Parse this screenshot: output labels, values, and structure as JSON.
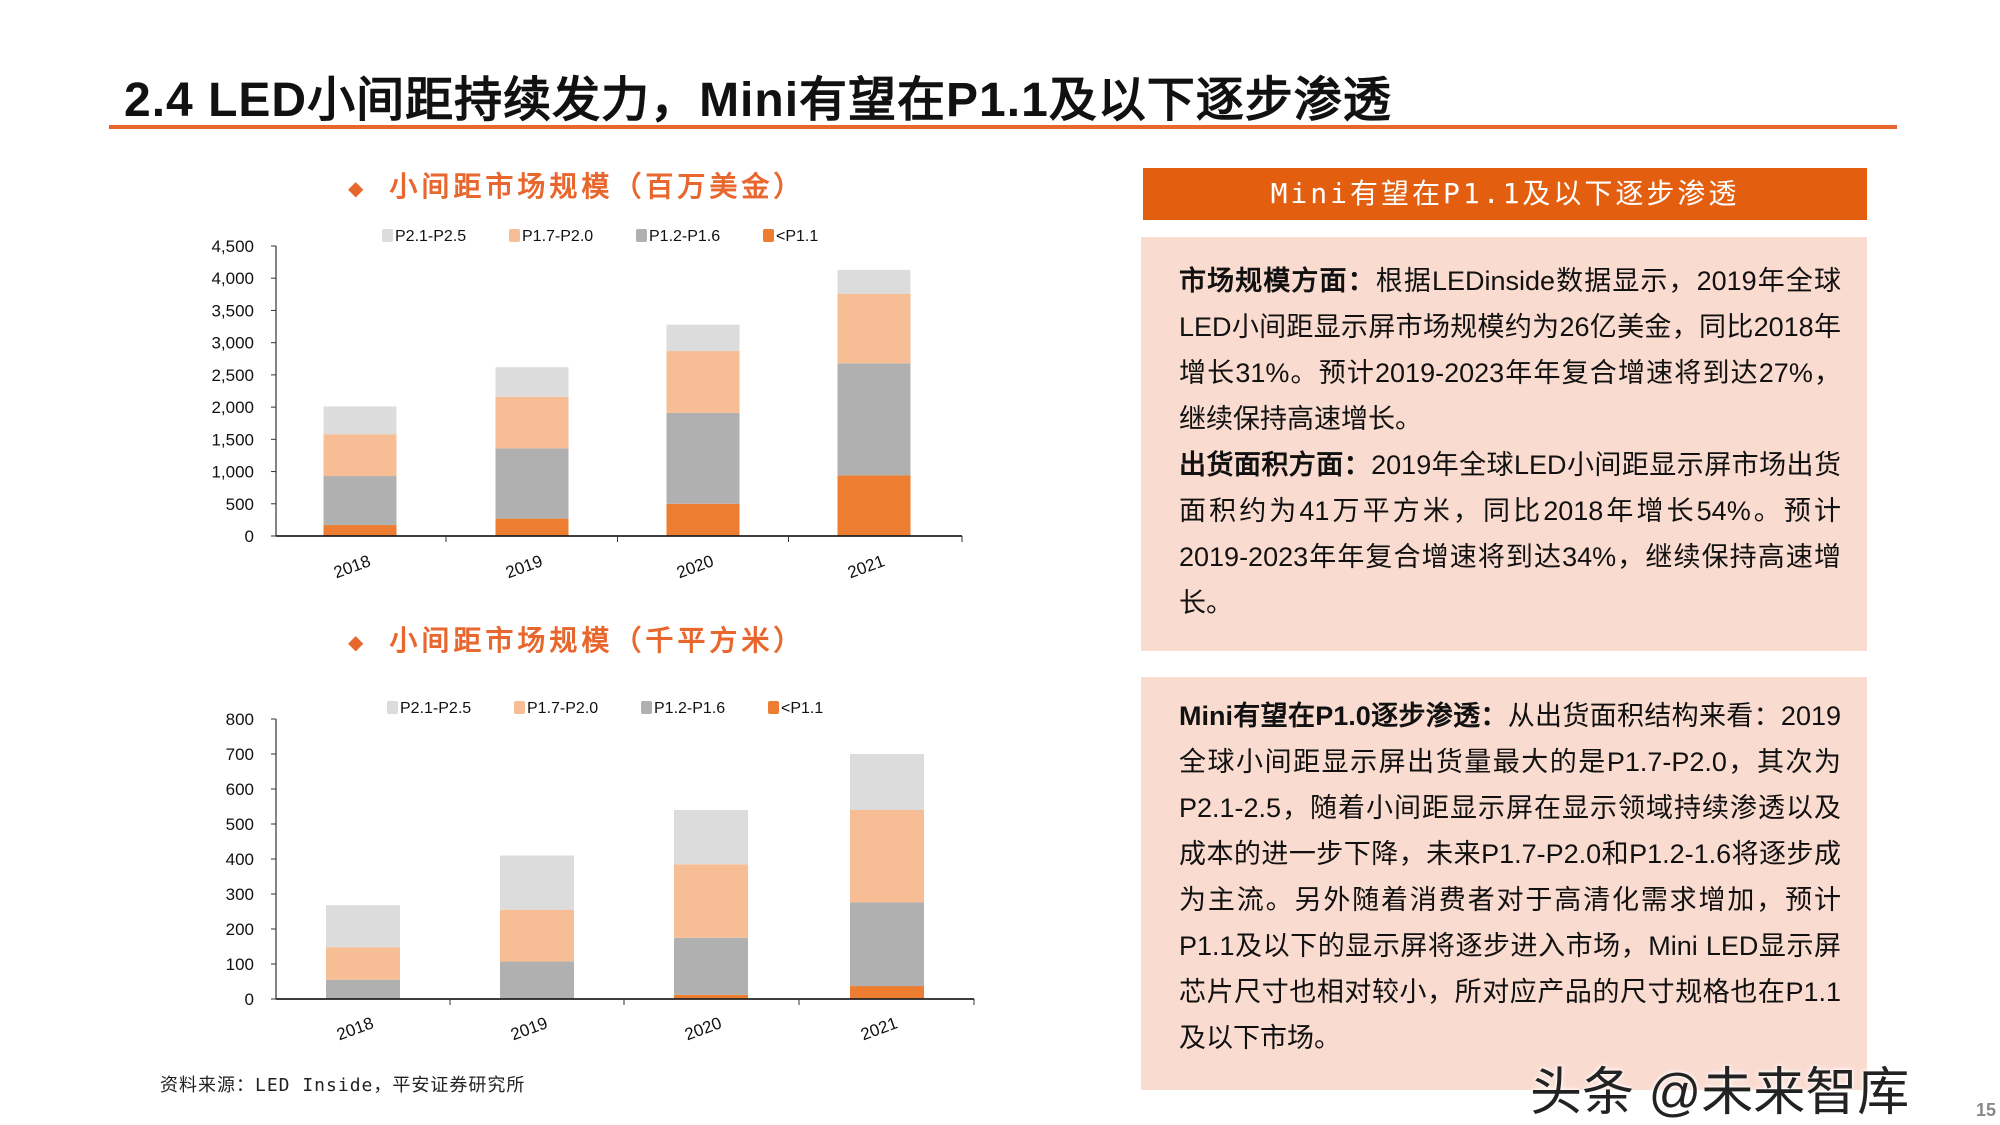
{
  "title": "2.4 LED小间距持续发力，Mini有望在P1.1及以下逐步渗透",
  "colors": {
    "accent": "#E8672E",
    "header_bg": "#E35F0F",
    "panel_bg": "#FADBD0"
  },
  "chart_data": [
    {
      "type": "bar",
      "stacked": true,
      "title": "小间距市场规模（百万美金）",
      "title_marker": "◆",
      "categories": [
        "2018",
        "2019",
        "2020",
        "2021"
      ],
      "series": [
        {
          "name": "<P1.1",
          "color": "#ED7D31",
          "values": [
            170,
            270,
            500,
            940
          ]
        },
        {
          "name": "P1.2-P1.6",
          "color": "#B0B0B0",
          "values": [
            760,
            1090,
            1410,
            1740
          ]
        },
        {
          "name": "P1.7-P2.0",
          "color": "#F7BE96",
          "values": [
            650,
            800,
            960,
            1080
          ]
        },
        {
          "name": "P2.1-P2.5",
          "color": "#DCDCDC",
          "values": [
            430,
            460,
            410,
            370
          ]
        }
      ],
      "legend_order": [
        "P2.1-P2.5",
        "P1.7-P2.0",
        "P1.2-P1.6",
        "<P1.1"
      ],
      "yticks": [
        "0",
        "500",
        "1,000",
        "1,500",
        "2,000",
        "2,500",
        "3,000",
        "3,500",
        "4,000",
        "4,500"
      ],
      "ylim": [
        0,
        4500
      ],
      "legend": "top",
      "grid": false
    },
    {
      "type": "bar",
      "stacked": true,
      "title": "小间距市场规模（千平方米）",
      "title_marker": "◆",
      "categories": [
        "2018",
        "2019",
        "2020",
        "2021"
      ],
      "series": [
        {
          "name": "<P1.1",
          "color": "#ED7D31",
          "values": [
            2,
            2,
            12,
            37
          ]
        },
        {
          "name": "P1.2-P1.6",
          "color": "#B0B0B0",
          "values": [
            53,
            105,
            163,
            239
          ]
        },
        {
          "name": "P1.7-P2.0",
          "color": "#F7BE96",
          "values": [
            93,
            148,
            210,
            264
          ]
        },
        {
          "name": "P2.1-P2.5",
          "color": "#DCDCDC",
          "values": [
            120,
            155,
            155,
            160
          ]
        }
      ],
      "legend_order": [
        "P2.1-P2.5",
        "P1.7-P2.0",
        "P1.2-P1.6",
        "<P1.1"
      ],
      "yticks": [
        "0",
        "100",
        "200",
        "300",
        "400",
        "500",
        "600",
        "700",
        "800"
      ],
      "ylim": [
        0,
        800
      ],
      "legend": "top",
      "grid": false
    }
  ],
  "panel": {
    "header": "Mini有望在P1.1及以下逐步渗透",
    "box1": [
      {
        "bold": "市场规模方面：",
        "text": "根据LEDinside数据显示，2019年全球LED小间距显示屏市场规模约为26亿美金，同比2018年增长31%。预计2019-2023年年复合增速将到达27%，继续保持高速增长。"
      },
      {
        "bold": "出货面积方面：",
        "text": "2019年全球LED小间距显示屏市场出货面积约为41万平方米，同比2018年增长54%。预计2019-2023年年复合增速将到达34%，继续保持高速增长。"
      }
    ],
    "box2": [
      {
        "bold": "Mini有望在P1.0逐步渗透：",
        "text": "从出货面积结构来看：2019全球小间距显示屏出货量最大的是P1.7-P2.0，其次为P2.1-2.5，随着小间距显示屏在显示领域持续渗透以及成本的进一步下降，未来P1.7-P2.0和P1.2-1.6将逐步成为主流。另外随着消费者对于高清化需求增加，预计P1.1及以下的显示屏将逐步进入市场，Mini LED显示屏芯片尺寸也相对较小，所对应产品的尺寸规格也在P1.1及以下市场。"
      }
    ]
  },
  "source": "资料来源：LED Inside，平安证券研究所",
  "watermark": "头条 @未来智库",
  "page_number": "15"
}
